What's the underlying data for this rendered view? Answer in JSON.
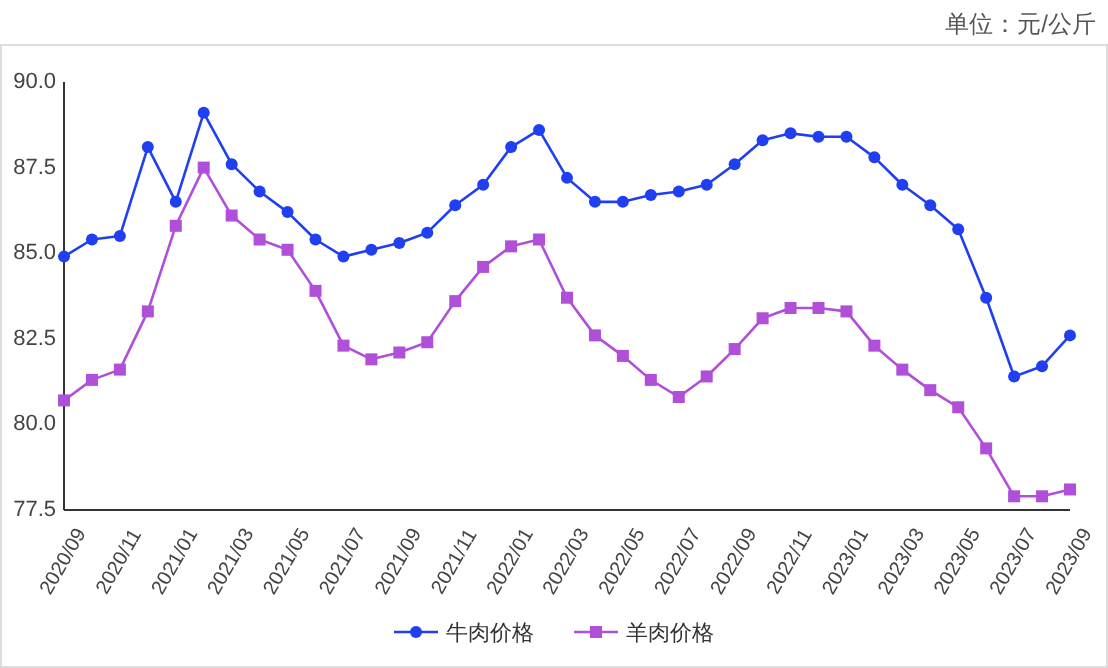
{
  "chart_data": {
    "type": "line",
    "annotations": [
      "单位：元/公斤"
    ],
    "categories": [
      "2020/09",
      null,
      "2020/11",
      null,
      "2021/01",
      null,
      "2021/03",
      null,
      "2021/05",
      null,
      "2021/07",
      null,
      "2021/09",
      null,
      "2021/11",
      null,
      "2022/01",
      null,
      "2022/03",
      null,
      "2022/05",
      null,
      "2022/07",
      null,
      "2022/09",
      null,
      "2022/11",
      null,
      "2023/01",
      null,
      "2023/03",
      null,
      "2023/05",
      null,
      "2023/07",
      null,
      "2023/09"
    ],
    "series": [
      {
        "name": "牛肉价格",
        "color": "#1f3ff0",
        "marker": "circle",
        "values": [
          84.9,
          85.4,
          85.5,
          88.1,
          86.5,
          89.1,
          87.6,
          86.8,
          86.2,
          85.4,
          84.9,
          85.1,
          85.3,
          85.6,
          86.4,
          87.0,
          88.1,
          88.6,
          87.2,
          86.5,
          86.5,
          86.7,
          86.8,
          87.0,
          87.6,
          88.3,
          88.5,
          88.4,
          88.4,
          87.8,
          87.0,
          86.4,
          85.7,
          83.7,
          81.4,
          81.7,
          82.6
        ]
      },
      {
        "name": "羊肉价格",
        "color": "#b04fd8",
        "marker": "square",
        "values": [
          80.7,
          81.3,
          81.6,
          83.3,
          85.8,
          87.5,
          86.1,
          85.4,
          85.1,
          83.9,
          82.3,
          81.9,
          82.1,
          82.4,
          83.6,
          84.6,
          85.2,
          85.4,
          83.7,
          82.6,
          82.0,
          81.3,
          80.8,
          81.4,
          82.2,
          83.1,
          83.4,
          83.4,
          83.3,
          82.3,
          81.6,
          81.0,
          80.5,
          79.3,
          77.9,
          77.9,
          78.1
        ]
      }
    ],
    "ylim": [
      77.5,
      90.0
    ],
    "yticks": [
      {
        "value": 77.5,
        "label": "77.5"
      },
      {
        "value": 80,
        "label": "80.0"
      },
      {
        "value": 82.5,
        "label": "82.5"
      },
      {
        "value": 85,
        "label": "85.0"
      },
      {
        "value": 87.5,
        "label": "87.5"
      },
      {
        "value": 90,
        "label": "90.0"
      }
    ],
    "grid": false,
    "legend": "bottom",
    "line_style": "solid"
  }
}
